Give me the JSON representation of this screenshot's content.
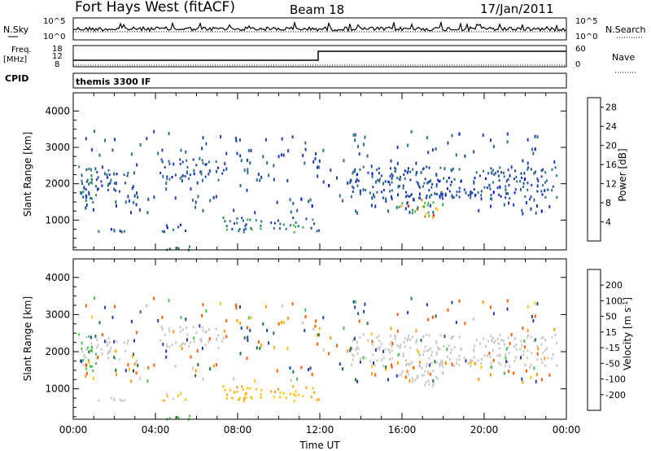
{
  "header": {
    "station": "Fort Hays West (fitACF)",
    "beam": "Beam 18",
    "date": "17/Jan/2011"
  },
  "left_labels": {
    "nsky": "N.Sky",
    "freq": "Freq.",
    "freq_unit": "[MHz]",
    "cpid": "CPID"
  },
  "right_labels": {
    "nsearch": "N.Search",
    "nave": "Nave"
  },
  "noise_axis": {
    "left_top": "10^5",
    "left_bottom": "10^0",
    "right_top": "10^5",
    "right_bottom": "10^0"
  },
  "freq_axis": {
    "left_ticks": [
      "18",
      "12",
      "8"
    ],
    "right_ticks": [
      "60",
      "0"
    ]
  },
  "cpid_text": "themis 3300 IF",
  "colors": {
    "power": [
      "#0000ff",
      "#1f3fa6",
      "#2a6c8a",
      "#2f8f5a",
      "#44b84a",
      "#ffd200",
      "#ffa500",
      "#ff6a00",
      "#ff0000"
    ],
    "velocity": [
      "#ff0000",
      "#ff5a00",
      "#ff9a00",
      "#ffc000",
      "#c8c8c0",
      "#48c048",
      "#1f7a3a",
      "#1f3fa6",
      "#0010ff"
    ]
  },
  "chart_data": [
    {
      "type": "heatmap",
      "name": "power",
      "ylabel": "Slant Range [km]",
      "xlabel": "",
      "ylim": [
        180,
        4500
      ],
      "xlim_hours": [
        0,
        24
      ],
      "y_ticks": [
        "1000",
        "2000",
        "3000",
        "4000"
      ],
      "colorbar": {
        "label": "Power [dB]",
        "ticks": [
          "4",
          "8",
          "12",
          "16",
          "20",
          "24",
          "28"
        ],
        "range": [
          0,
          30
        ]
      },
      "regions": [
        {
          "x": [
            0.2,
            1.1
          ],
          "y": [
            1500,
            2600
          ],
          "val": [
            4,
            14
          ]
        },
        {
          "x": [
            1.0,
            2.7
          ],
          "y": [
            1800,
            2400
          ],
          "val": [
            3,
            8
          ]
        },
        {
          "x": [
            0.9,
            2.8
          ],
          "y": [
            650,
            800
          ],
          "val": [
            3,
            9
          ]
        },
        {
          "x": [
            4.2,
            7.3
          ],
          "y": [
            2100,
            2700
          ],
          "val": [
            3,
            10
          ]
        },
        {
          "x": [
            4.3,
            5.5
          ],
          "y": [
            700,
            950
          ],
          "val": [
            3,
            9
          ]
        },
        {
          "x": [
            7.2,
            12.0
          ],
          "y": [
            700,
            1100
          ],
          "val": [
            4,
            16
          ]
        },
        {
          "x": [
            13.5,
            23.5
          ],
          "y": [
            1600,
            2500
          ],
          "val": [
            3,
            10
          ]
        },
        {
          "x": [
            15.8,
            18.0
          ],
          "y": [
            1100,
            1600
          ],
          "val": [
            10,
            28
          ]
        },
        {
          "x": [
            4.5,
            6.0
          ],
          "y": [
            200,
            360
          ],
          "val": [
            6,
            14
          ]
        },
        {
          "x": [
            0.3,
            23.5
          ],
          "y": [
            1200,
            3500
          ],
          "val": [
            3,
            10
          ],
          "sparse": true
        }
      ]
    },
    {
      "type": "heatmap",
      "name": "velocity",
      "ylabel": "Slant Range [km]",
      "xlabel": "Time UT",
      "ylim": [
        180,
        4500
      ],
      "xlim_hours": [
        0,
        24
      ],
      "y_ticks": [
        "1000",
        "2000",
        "3000",
        "4000"
      ],
      "x_ticks": [
        "00:00",
        "04:00",
        "08:00",
        "12:00",
        "16:00",
        "20:00",
        "00:00"
      ],
      "colorbar": {
        "label": "Velocity [m s^-1]",
        "ticks": [
          "-200",
          "-100",
          "-50",
          "-15",
          "15",
          "50",
          "100",
          "200"
        ]
      },
      "regions": [
        {
          "x": [
            0.2,
            1.1
          ],
          "y": [
            1500,
            2600
          ],
          "val": [
            -15,
            50
          ]
        },
        {
          "x": [
            1.0,
            2.7
          ],
          "y": [
            1800,
            2400
          ],
          "val": [
            -15,
            15
          ]
        },
        {
          "x": [
            0.9,
            2.8
          ],
          "y": [
            650,
            800
          ],
          "val": [
            -15,
            15
          ]
        },
        {
          "x": [
            4.2,
            7.3
          ],
          "y": [
            2100,
            2700
          ],
          "val": [
            -15,
            15
          ]
        },
        {
          "x": [
            4.3,
            5.5
          ],
          "y": [
            700,
            950
          ],
          "val": [
            -50,
            15
          ]
        },
        {
          "x": [
            7.2,
            12.0
          ],
          "y": [
            700,
            1100
          ],
          "val": [
            -60,
            -20
          ]
        },
        {
          "x": [
            13.5,
            23.5
          ],
          "y": [
            1600,
            2500
          ],
          "val": [
            -15,
            15
          ]
        },
        {
          "x": [
            15.8,
            18.0
          ],
          "y": [
            1100,
            1600
          ],
          "val": [
            -15,
            15
          ]
        },
        {
          "x": [
            4.5,
            6.0
          ],
          "y": [
            200,
            360
          ],
          "val": [
            15,
            50
          ]
        },
        {
          "x": [
            0.3,
            23.5
          ],
          "y": [
            1200,
            3500
          ],
          "val": [
            -200,
            200
          ],
          "sparse": true
        }
      ]
    }
  ]
}
